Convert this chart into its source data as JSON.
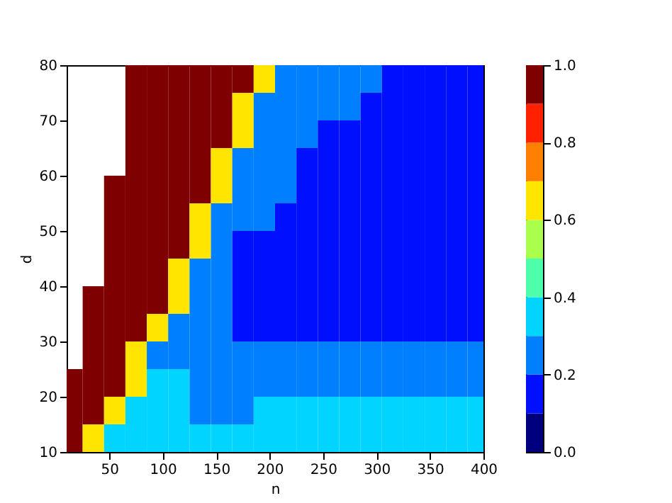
{
  "chart_data": {
    "type": "heatmap",
    "xlabel": "n",
    "ylabel": "d",
    "x": [
      15,
      35,
      55,
      75,
      95,
      115,
      135,
      155,
      175,
      195,
      215,
      235,
      255,
      275,
      295,
      315,
      335,
      355,
      375,
      395
    ],
    "y": [
      77.5,
      72.5,
      67.5,
      62.5,
      57.5,
      52.5,
      47.5,
      42.5,
      37.5,
      32.5,
      27.5,
      22.5,
      17.5,
      12.5
    ],
    "cells": [
      [
        null,
        null,
        null,
        1,
        1,
        1,
        1,
        1,
        1,
        0.65,
        0.25,
        0.25,
        0.25,
        0.25,
        0.25,
        0.15,
        0.15,
        0.15,
        0.15,
        0.15
      ],
      [
        null,
        null,
        null,
        1,
        1,
        1,
        1,
        1,
        0.65,
        0.25,
        0.25,
        0.25,
        0.25,
        0.25,
        0.15,
        0.15,
        0.15,
        0.15,
        0.15,
        0.15
      ],
      [
        null,
        null,
        null,
        1,
        1,
        1,
        1,
        1,
        0.65,
        0.25,
        0.25,
        0.25,
        0.15,
        0.15,
        0.15,
        0.15,
        0.15,
        0.15,
        0.15,
        0.15
      ],
      [
        null,
        null,
        null,
        1,
        1,
        1,
        1,
        0.65,
        0.25,
        0.25,
        0.25,
        0.15,
        0.15,
        0.15,
        0.15,
        0.15,
        0.15,
        0.15,
        0.15,
        0.15
      ],
      [
        null,
        null,
        1,
        1,
        1,
        1,
        1,
        0.65,
        0.25,
        0.25,
        0.25,
        0.15,
        0.15,
        0.15,
        0.15,
        0.15,
        0.15,
        0.15,
        0.15,
        0.15
      ],
      [
        null,
        null,
        1,
        1,
        1,
        1,
        0.65,
        0.25,
        0.25,
        0.25,
        0.15,
        0.15,
        0.15,
        0.15,
        0.15,
        0.15,
        0.15,
        0.15,
        0.15,
        0.15
      ],
      [
        null,
        null,
        1,
        1,
        1,
        1,
        0.65,
        0.25,
        0.15,
        0.15,
        0.15,
        0.15,
        0.15,
        0.15,
        0.15,
        0.15,
        0.15,
        0.15,
        0.15,
        0.15
      ],
      [
        null,
        null,
        1,
        1,
        1,
        0.65,
        0.25,
        0.25,
        0.15,
        0.15,
        0.15,
        0.15,
        0.15,
        0.15,
        0.15,
        0.15,
        0.15,
        0.15,
        0.15,
        0.15
      ],
      [
        null,
        1,
        1,
        1,
        1,
        0.65,
        0.25,
        0.25,
        0.15,
        0.15,
        0.15,
        0.15,
        0.15,
        0.15,
        0.15,
        0.15,
        0.15,
        0.15,
        0.15,
        0.15
      ],
      [
        null,
        1,
        1,
        1,
        0.65,
        0.25,
        0.25,
        0.25,
        0.15,
        0.15,
        0.15,
        0.15,
        0.15,
        0.15,
        0.15,
        0.15,
        0.15,
        0.15,
        0.15,
        0.15
      ],
      [
        null,
        1,
        1,
        0.65,
        0.25,
        0.25,
        0.25,
        0.25,
        0.25,
        0.25,
        0.25,
        0.25,
        0.25,
        0.25,
        0.25,
        0.25,
        0.25,
        0.25,
        0.25,
        0.25
      ],
      [
        1,
        1,
        1,
        0.65,
        0.35,
        0.35,
        0.25,
        0.25,
        0.25,
        0.25,
        0.25,
        0.25,
        0.25,
        0.25,
        0.25,
        0.25,
        0.25,
        0.25,
        0.25,
        0.25
      ],
      [
        1,
        1,
        0.65,
        0.35,
        0.35,
        0.35,
        0.25,
        0.25,
        0.25,
        0.35,
        0.35,
        0.35,
        0.35,
        0.35,
        0.35,
        0.35,
        0.35,
        0.35,
        0.35,
        0.35
      ],
      [
        1,
        0.65,
        0.35,
        0.35,
        0.35,
        0.35,
        0.35,
        0.35,
        0.35,
        0.35,
        0.35,
        0.35,
        0.35,
        0.35,
        0.35,
        0.35,
        0.35,
        0.35,
        0.35,
        0.35
      ]
    ],
    "colors": [
      "#00007f",
      "#0010ff",
      "#0080ff",
      "#00d4ff",
      "#4dffaa",
      "#aaff4d",
      "#ffe500",
      "#ff8000",
      "#ff2000",
      "#7f0000"
    ],
    "clim": [
      0,
      1
    ],
    "cticks": [
      {
        "value": 0,
        "label": "0.0"
      },
      0.2,
      0.4,
      0.6,
      0.8,
      {
        "value": 1,
        "label": "1.0"
      }
    ],
    "xlim": [
      10,
      400
    ],
    "xticks": [
      50,
      100,
      150,
      200,
      250,
      300,
      350,
      400
    ],
    "ylim": [
      10,
      80
    ],
    "yticks": [
      10,
      20,
      30,
      40,
      50,
      60,
      70,
      80
    ],
    "grid": false
  }
}
